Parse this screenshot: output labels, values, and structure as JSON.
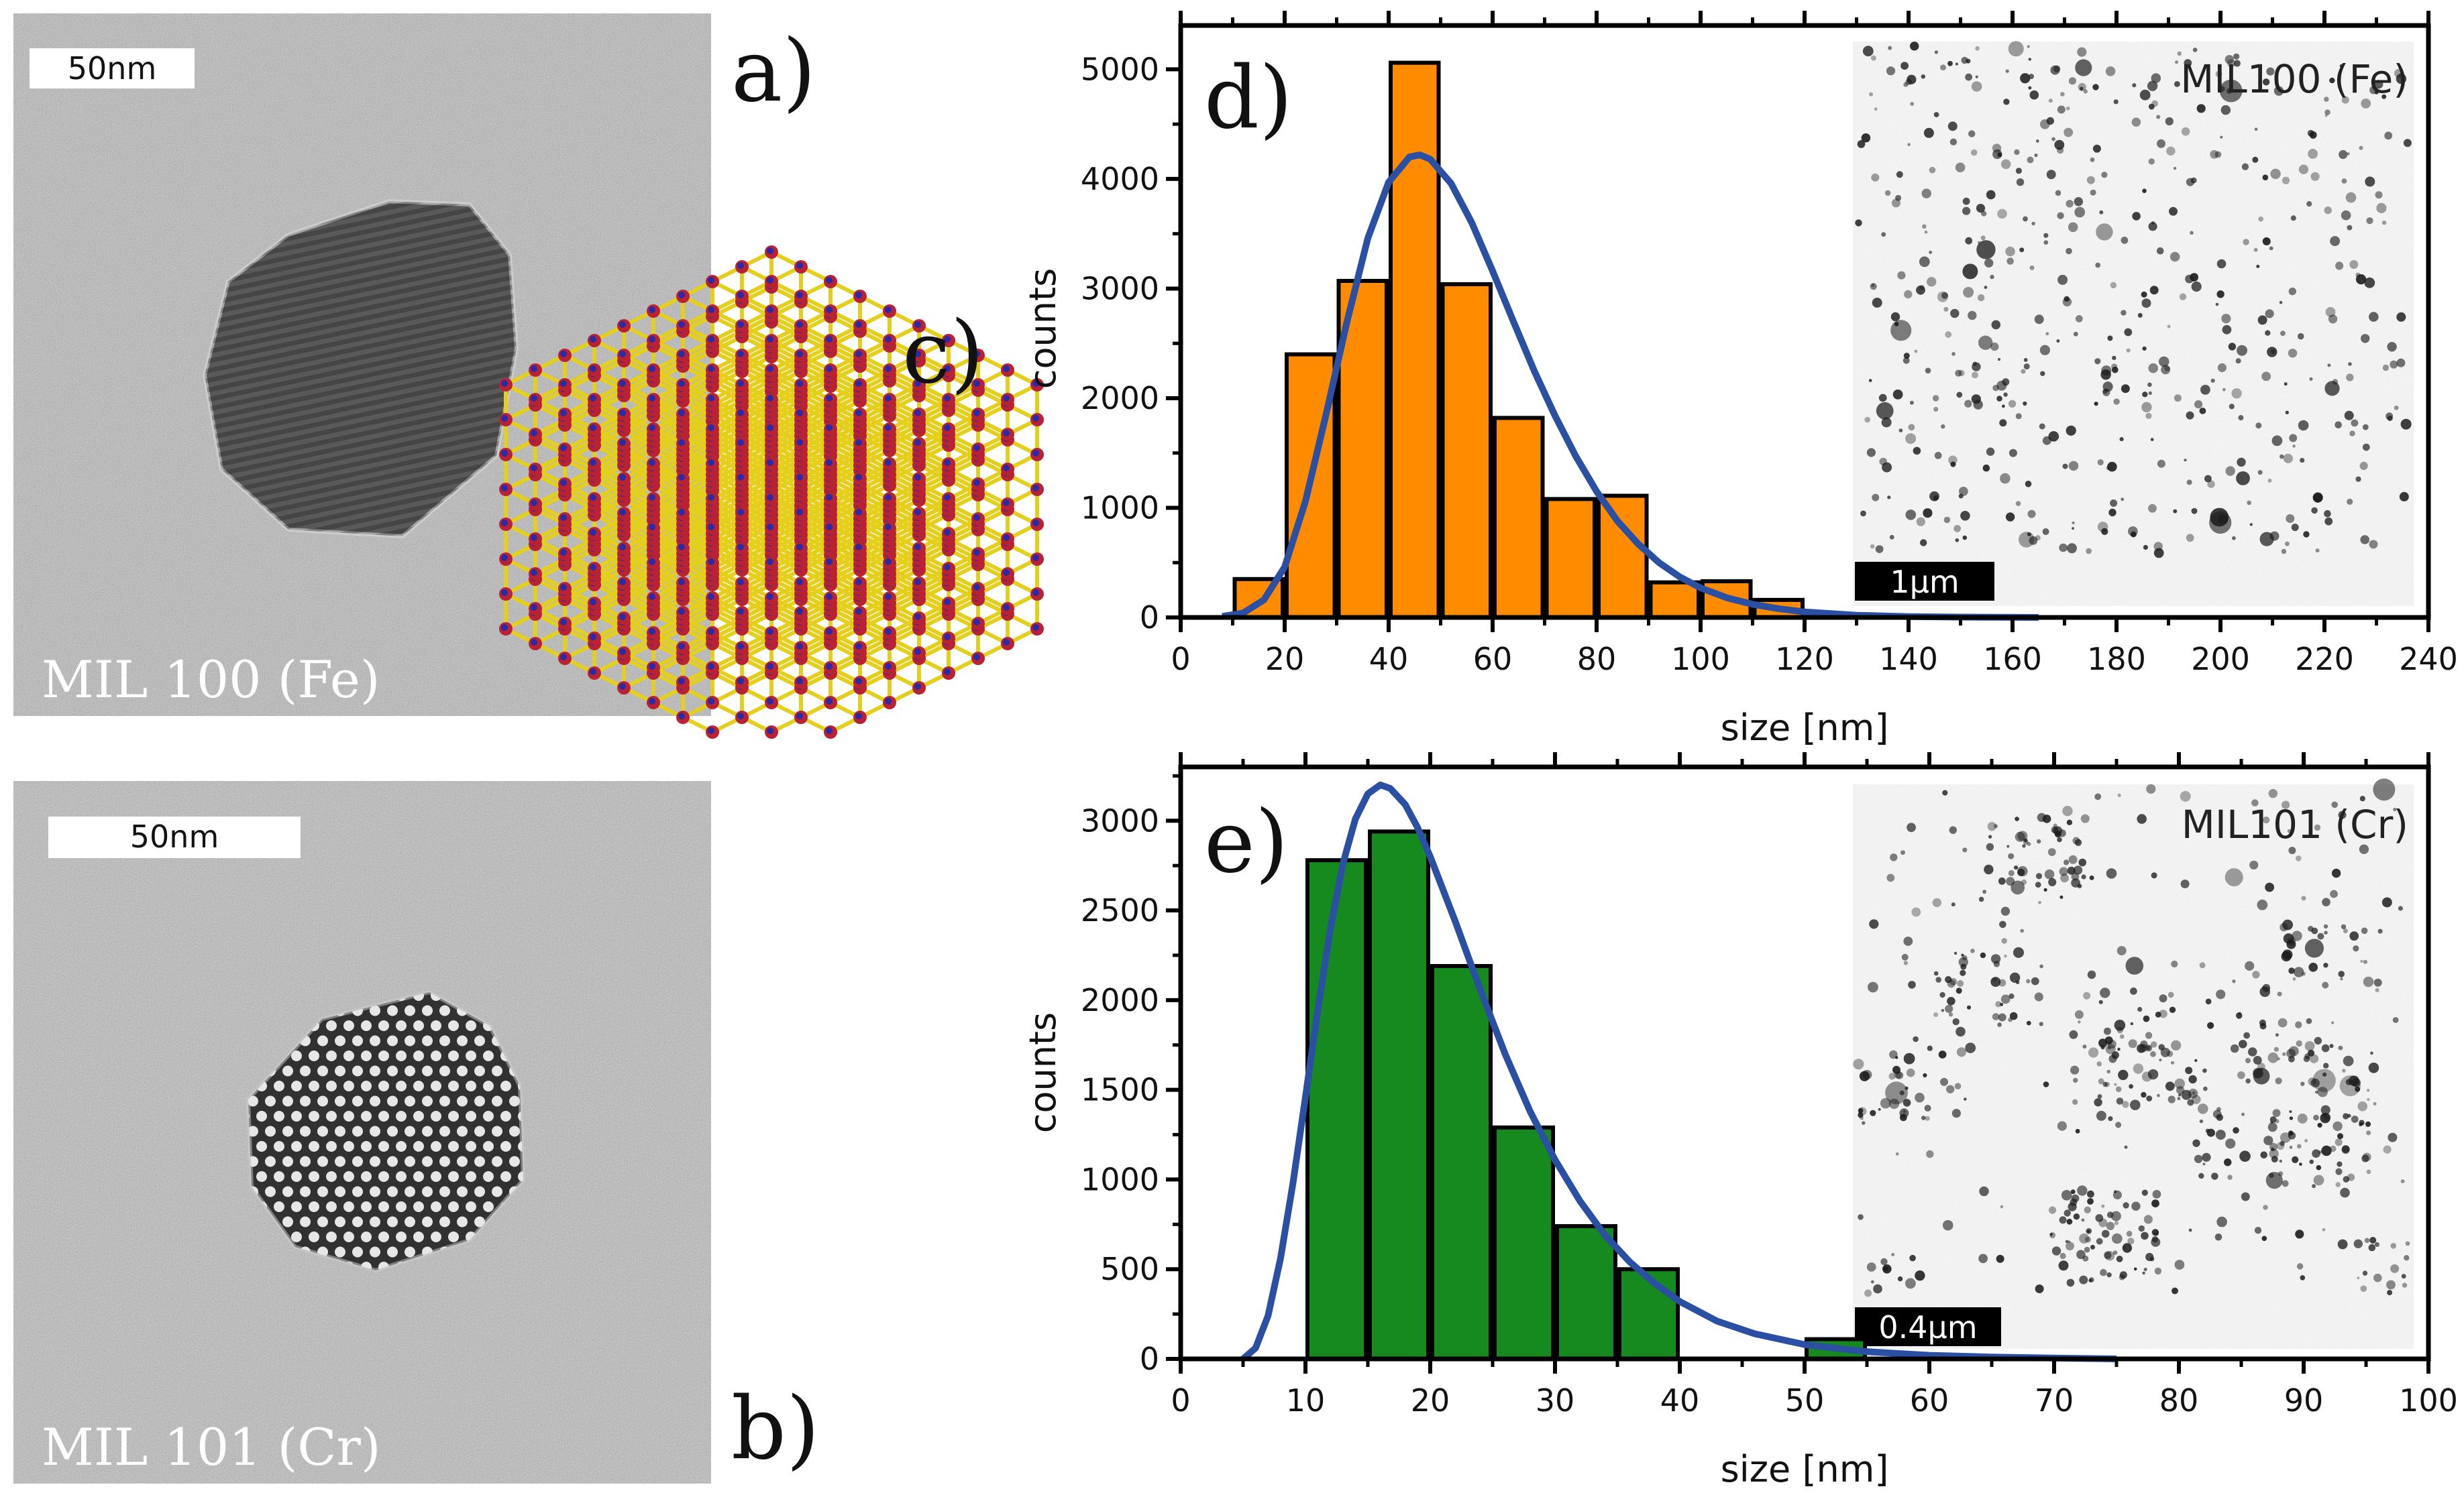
{
  "panels": {
    "a": {
      "label": "a)",
      "caption": "MIL 100 (Fe)",
      "scalebar": "50nm"
    },
    "b": {
      "label": "b)",
      "caption": "MIL 101 (Cr)",
      "scalebar": "50nm"
    },
    "c": {
      "label": "c)"
    }
  },
  "colors": {
    "fe_bars": "#ff8c00",
    "cr_bars": "#16891f",
    "fit_curve": "#2a4fa3",
    "framework_bonds": "#e3cf1c",
    "framework_oxygen": "#b82233",
    "framework_metal": "#2a2aa8"
  },
  "chart_data": [
    {
      "type": "bar",
      "panel_label": "d)",
      "inset_title": "MIL100 (Fe)",
      "inset_scalebar": "1µm",
      "xlabel": "size [nm]",
      "ylabel": "counts",
      "xlim": [
        0,
        240
      ],
      "ylim": [
        0,
        5400
      ],
      "xticks": [
        0,
        20,
        40,
        60,
        80,
        100,
        120,
        140,
        160,
        180,
        200,
        220,
        240
      ],
      "yticks": [
        0,
        1000,
        2000,
        3000,
        4000,
        5000
      ],
      "bin_width": 10,
      "bins": [
        15,
        25,
        35,
        45,
        55,
        65,
        75,
        85,
        95,
        105,
        115,
        125
      ],
      "values": [
        350,
        2400,
        3070,
        5060,
        3040,
        1820,
        1080,
        1110,
        320,
        330,
        160,
        0
      ],
      "fit": {
        "type": "lognormal",
        "x": [
          8,
          12,
          16,
          20,
          24,
          28,
          32,
          36,
          40,
          44,
          46,
          48,
          52,
          56,
          60,
          64,
          68,
          72,
          76,
          80,
          84,
          88,
          92,
          96,
          100,
          105,
          110,
          115,
          120,
          130,
          140,
          150,
          165
        ],
        "y": [
          10,
          40,
          160,
          460,
          1060,
          1860,
          2700,
          3460,
          3970,
          4200,
          4220,
          4180,
          3960,
          3600,
          3160,
          2700,
          2250,
          1840,
          1470,
          1150,
          880,
          670,
          500,
          370,
          270,
          180,
          120,
          80,
          50,
          20,
          8,
          3,
          0
        ]
      }
    },
    {
      "type": "bar",
      "panel_label": "e)",
      "inset_title": "MIL101 (Cr)",
      "inset_scalebar": "0.4µm",
      "xlabel": "size [nm]",
      "ylabel": "counts",
      "xlim": [
        0,
        100
      ],
      "ylim": [
        0,
        3300
      ],
      "xticks": [
        0,
        10,
        20,
        30,
        40,
        50,
        60,
        70,
        80,
        90,
        100
      ],
      "yticks": [
        0,
        500,
        1000,
        1500,
        2000,
        2500,
        3000
      ],
      "bin_width": 5,
      "bins": [
        12.5,
        17.5,
        22.5,
        27.5,
        32.5,
        37.5,
        52.5
      ],
      "values": [
        2780,
        2940,
        2190,
        1290,
        740,
        500,
        110
      ],
      "fit": {
        "type": "lognormal",
        "x": [
          5,
          6,
          7,
          8,
          9,
          10,
          11,
          12,
          13,
          14,
          15,
          16,
          16.8,
          18,
          19,
          20,
          22,
          24,
          26,
          28,
          30,
          32,
          34,
          36,
          38,
          40,
          43,
          46,
          50,
          55,
          60,
          65,
          70,
          75
        ],
        "y": [
          0,
          60,
          240,
          560,
          980,
          1460,
          1950,
          2400,
          2760,
          3010,
          3150,
          3200,
          3180,
          3090,
          2960,
          2800,
          2440,
          2060,
          1700,
          1380,
          1110,
          880,
          690,
          540,
          420,
          320,
          210,
          140,
          80,
          40,
          20,
          10,
          5,
          0
        ]
      }
    }
  ]
}
